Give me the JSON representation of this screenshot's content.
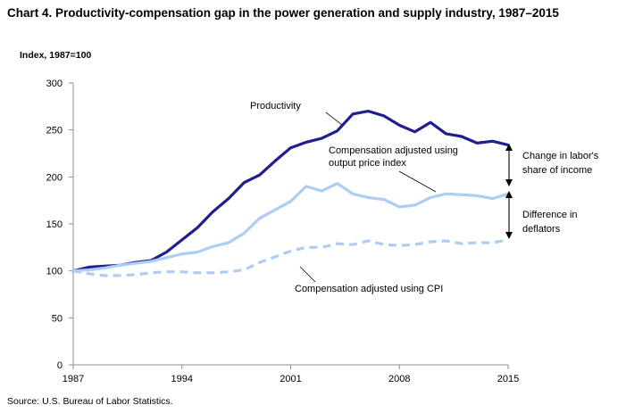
{
  "title": "Chart 4. Productivity-compensation gap in the power generation and supply industry, 1987–2015",
  "y_unit_label": "Index, 1987=100",
  "source": "Source: U.S. Bureau of Labor Statistics.",
  "colors": {
    "productivity": "#1f1f8f",
    "comp_output": "#aecdf2",
    "comp_cpi": "#aecdf2",
    "axis": "#8c8c8c",
    "arrow": "#000000"
  },
  "chart_data": {
    "type": "line",
    "x": [
      1987,
      1988,
      1989,
      1990,
      1991,
      1992,
      1993,
      1994,
      1995,
      1996,
      1997,
      1998,
      1999,
      2000,
      2001,
      2002,
      2003,
      2004,
      2005,
      2006,
      2007,
      2008,
      2009,
      2010,
      2011,
      2012,
      2013,
      2014,
      2015
    ],
    "xticks": [
      1987,
      1994,
      2001,
      2008,
      2015
    ],
    "yticks": [
      0,
      50,
      100,
      150,
      200,
      250,
      300
    ],
    "ylim": [
      0,
      300
    ],
    "xlim": [
      1987,
      2015
    ],
    "grid": false,
    "series": [
      {
        "name": "Productivity",
        "style": "solid",
        "values": [
          100,
          104,
          105,
          106,
          109,
          111,
          120,
          133,
          146,
          163,
          177,
          194,
          202,
          217,
          231,
          237,
          241,
          249,
          267,
          270,
          265,
          255,
          248,
          258,
          246,
          243,
          236,
          238,
          234
        ]
      },
      {
        "name": "Compensation adjusted using output price index",
        "style": "solid",
        "values": [
          100,
          101,
          103,
          106,
          108,
          110,
          114,
          118,
          120,
          126,
          130,
          140,
          156,
          165,
          174,
          190,
          185,
          193,
          182,
          178,
          176,
          168,
          170,
          178,
          182,
          181,
          180,
          177,
          182
        ]
      },
      {
        "name": "Compensation adjusted using CPI",
        "style": "dashed",
        "values": [
          100,
          97,
          95,
          95,
          96,
          98,
          99,
          99,
          98,
          98,
          99,
          101,
          109,
          115,
          121,
          125,
          125,
          129,
          128,
          132,
          128,
          127,
          128,
          131,
          132,
          129,
          130,
          130,
          133
        ]
      }
    ],
    "annotations": {
      "productivity": "Productivity",
      "comp_output_line1": "Compensation adjusted using",
      "comp_output_line2": "output price index",
      "comp_cpi": "Compensation adjusted using CPI",
      "share_line1": "Change in labor's",
      "share_line2": "share of income",
      "deflator_line1": "Difference in",
      "deflator_line2": "deflators"
    }
  }
}
